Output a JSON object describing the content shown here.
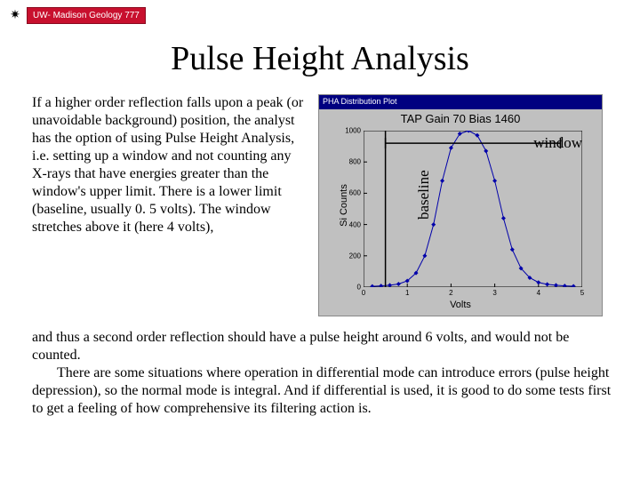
{
  "header": {
    "badge_label": "UW- Madison Geology 777",
    "badge_icon": "✷"
  },
  "title": "Pulse Height Analysis",
  "left_paragraph": "If a higher order reflection falls upon a peak (or unavoidable background) position, the analyst has the option of using Pulse Height Analysis, i.e. setting up a window and not counting any X-rays that have energies greater than the window's upper limit.  There is a lower limit (baseline, usually 0. 5 volts). The window stretches above it (here 4 volts),",
  "bottom_paragraph_1": "and thus a second order reflection should have a pulse height around 6 volts, and would not be counted.",
  "bottom_paragraph_2": "There are some situations where operation in differential mode can introduce errors (pulse height depression), so the normal mode is integral. And if differential is used, it is good to do some tests first to get a feeling of how comprehensive its filtering action is.",
  "chart": {
    "type": "line",
    "window_title": "PHA Distribution Plot",
    "inner_title": "TAP Gain 70 Bias 1460",
    "xlabel": "Volts",
    "ylabel": "Si Counts",
    "ylim": [
      0,
      1000
    ],
    "yticks": [
      0,
      200,
      400,
      600,
      800,
      1000
    ],
    "xlim": [
      0,
      5
    ],
    "xticks": [
      0,
      1,
      2,
      3,
      4,
      5
    ],
    "line_color": "#0000aa",
    "marker_color": "#0000aa",
    "marker": "diamond",
    "marker_size": 5,
    "line_width": 1,
    "background_color": "#c0c0c0",
    "axis_color": "#000000",
    "x_values": [
      0.2,
      0.4,
      0.6,
      0.8,
      1.0,
      1.2,
      1.4,
      1.6,
      1.8,
      2.0,
      2.2,
      2.4,
      2.6,
      2.8,
      3.0,
      3.2,
      3.4,
      3.6,
      3.8,
      4.0,
      4.2,
      4.4,
      4.6,
      4.8
    ],
    "y_values": [
      5,
      8,
      12,
      20,
      40,
      90,
      200,
      400,
      680,
      890,
      980,
      1000,
      970,
      870,
      680,
      440,
      240,
      120,
      60,
      30,
      18,
      12,
      8,
      6
    ],
    "annotations": {
      "window_label": "window",
      "baseline_label": "baseline",
      "baseline_x": 0.5,
      "window_upper_x": 4.5,
      "bracket_y": 920,
      "bracket_color": "#000000"
    }
  }
}
